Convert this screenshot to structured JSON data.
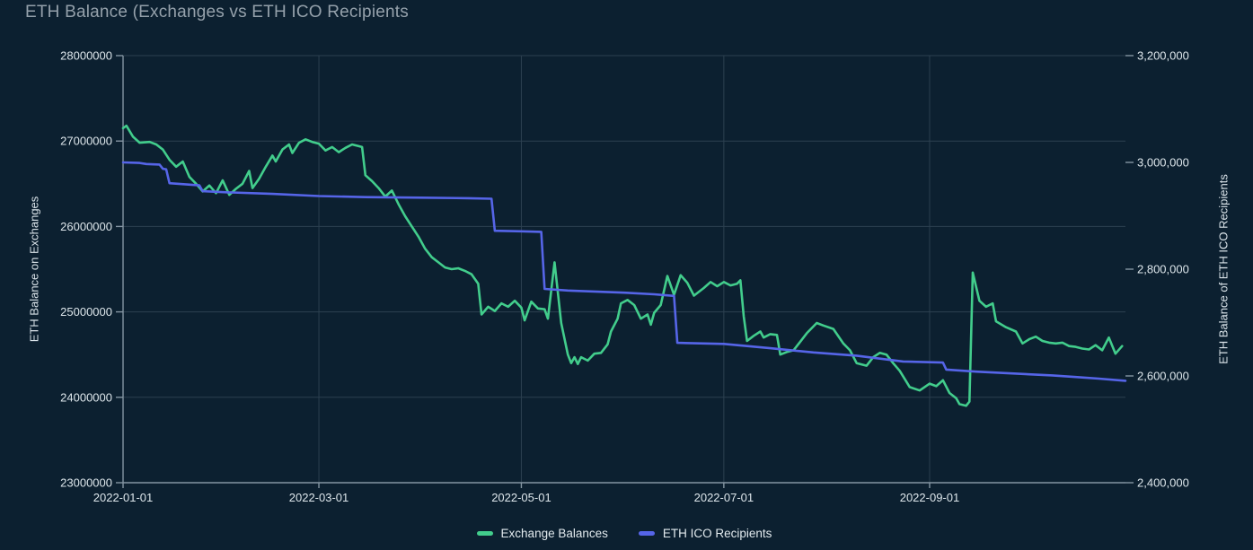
{
  "title": "ETH Balance (Exchanges vs ETH ICO Recipients",
  "colors": {
    "background": "#0c2030",
    "grid": "#2c4050",
    "axis": "#8495a2",
    "title_text": "#95a1ab",
    "tick_text": "#dde6eb",
    "exchange_balances": "#42cd8c",
    "eth_ico_recipients": "#5665e8"
  },
  "chart_data": {
    "type": "line",
    "title": "ETH Balance (Exchanges vs ETH ICO Recipients",
    "grid": true,
    "legend_position": "bottom",
    "x_axis": {
      "start": "2022-01-01",
      "end": "2022-10-30",
      "tick_dates": [
        "2022-01-01",
        "2022-03-01",
        "2022-05-01",
        "2022-07-01",
        "2022-09-01"
      ],
      "tick_labels": [
        "2022-01-01",
        "2022-03-01",
        "2022-05-01",
        "2022-07-01",
        "2022-09-01"
      ]
    },
    "left_axis": {
      "label": "ETH Balance on Exchanges",
      "min": 23000000,
      "max": 28000000,
      "tick_values": [
        28000000,
        27000000,
        26000000,
        25000000,
        24000000,
        23000000
      ],
      "tick_labels": [
        "28000000",
        "27000000",
        "26000000",
        "25000000",
        "24000000",
        "23000000"
      ]
    },
    "right_axis": {
      "label": "ETH Balance of ETH ICO Recipients",
      "min": 2400000,
      "max": 3200000,
      "tick_values": [
        3200000,
        3000000,
        2800000,
        2600000,
        2400000
      ],
      "tick_labels": [
        "3,200,000",
        "3,000,000",
        "2,800,000",
        "2,600,000",
        "2,400,000"
      ]
    },
    "series": [
      {
        "name": "Exchange Balances",
        "axis": "left",
        "color": "#42cd8c",
        "points": [
          [
            "2022-01-01",
            27150000
          ],
          [
            "2022-01-02",
            27180000
          ],
          [
            "2022-01-04",
            27050000
          ],
          [
            "2022-01-06",
            26980000
          ],
          [
            "2022-01-09",
            26990000
          ],
          [
            "2022-01-11",
            26960000
          ],
          [
            "2022-01-13",
            26900000
          ],
          [
            "2022-01-15",
            26780000
          ],
          [
            "2022-01-17",
            26700000
          ],
          [
            "2022-01-19",
            26760000
          ],
          [
            "2022-01-21",
            26580000
          ],
          [
            "2022-01-23",
            26500000
          ],
          [
            "2022-01-25",
            26410000
          ],
          [
            "2022-01-27",
            26480000
          ],
          [
            "2022-01-29",
            26390000
          ],
          [
            "2022-01-31",
            26540000
          ],
          [
            "2022-02-02",
            26370000
          ],
          [
            "2022-02-04",
            26440000
          ],
          [
            "2022-02-06",
            26500000
          ],
          [
            "2022-02-08",
            26650000
          ],
          [
            "2022-02-09",
            26450000
          ],
          [
            "2022-02-11",
            26560000
          ],
          [
            "2022-02-13",
            26700000
          ],
          [
            "2022-02-15",
            26830000
          ],
          [
            "2022-02-16",
            26760000
          ],
          [
            "2022-02-18",
            26900000
          ],
          [
            "2022-02-20",
            26960000
          ],
          [
            "2022-02-21",
            26860000
          ],
          [
            "2022-02-23",
            26980000
          ],
          [
            "2022-02-25",
            27020000
          ],
          [
            "2022-02-27",
            26990000
          ],
          [
            "2022-03-01",
            26970000
          ],
          [
            "2022-03-03",
            26890000
          ],
          [
            "2022-03-05",
            26930000
          ],
          [
            "2022-03-07",
            26870000
          ],
          [
            "2022-03-09",
            26920000
          ],
          [
            "2022-03-11",
            26960000
          ],
          [
            "2022-03-13",
            26940000
          ],
          [
            "2022-03-14",
            26930000
          ],
          [
            "2022-03-15",
            26600000
          ],
          [
            "2022-03-17",
            26530000
          ],
          [
            "2022-03-19",
            26450000
          ],
          [
            "2022-03-21",
            26350000
          ],
          [
            "2022-03-23",
            26420000
          ],
          [
            "2022-03-25",
            26260000
          ],
          [
            "2022-03-27",
            26120000
          ],
          [
            "2022-03-29",
            26000000
          ],
          [
            "2022-03-31",
            25880000
          ],
          [
            "2022-04-02",
            25740000
          ],
          [
            "2022-04-04",
            25640000
          ],
          [
            "2022-04-06",
            25580000
          ],
          [
            "2022-04-08",
            25520000
          ],
          [
            "2022-04-10",
            25500000
          ],
          [
            "2022-04-12",
            25510000
          ],
          [
            "2022-04-14",
            25480000
          ],
          [
            "2022-04-16",
            25440000
          ],
          [
            "2022-04-18",
            25330000
          ],
          [
            "2022-04-19",
            24970000
          ],
          [
            "2022-04-21",
            25060000
          ],
          [
            "2022-04-23",
            25010000
          ],
          [
            "2022-04-25",
            25100000
          ],
          [
            "2022-04-27",
            25060000
          ],
          [
            "2022-04-29",
            25130000
          ],
          [
            "2022-05-01",
            25050000
          ],
          [
            "2022-05-02",
            24900000
          ],
          [
            "2022-05-04",
            25120000
          ],
          [
            "2022-05-06",
            25040000
          ],
          [
            "2022-05-08",
            25030000
          ],
          [
            "2022-05-09",
            24920000
          ],
          [
            "2022-05-11",
            25580000
          ],
          [
            "2022-05-13",
            24870000
          ],
          [
            "2022-05-15",
            24500000
          ],
          [
            "2022-05-16",
            24400000
          ],
          [
            "2022-05-17",
            24470000
          ],
          [
            "2022-05-18",
            24390000
          ],
          [
            "2022-05-19",
            24470000
          ],
          [
            "2022-05-21",
            24430000
          ],
          [
            "2022-05-23",
            24510000
          ],
          [
            "2022-05-25",
            24520000
          ],
          [
            "2022-05-27",
            24620000
          ],
          [
            "2022-05-28",
            24770000
          ],
          [
            "2022-05-30",
            24920000
          ],
          [
            "2022-05-31",
            25100000
          ],
          [
            "2022-06-02",
            25140000
          ],
          [
            "2022-06-04",
            25080000
          ],
          [
            "2022-06-06",
            24920000
          ],
          [
            "2022-06-08",
            24970000
          ],
          [
            "2022-06-09",
            24850000
          ],
          [
            "2022-06-10",
            24990000
          ],
          [
            "2022-06-12",
            25080000
          ],
          [
            "2022-06-14",
            25420000
          ],
          [
            "2022-06-16",
            25200000
          ],
          [
            "2022-06-18",
            25430000
          ],
          [
            "2022-06-20",
            25340000
          ],
          [
            "2022-06-22",
            25190000
          ],
          [
            "2022-06-25",
            25280000
          ],
          [
            "2022-06-27",
            25350000
          ],
          [
            "2022-06-29",
            25300000
          ],
          [
            "2022-07-01",
            25350000
          ],
          [
            "2022-07-03",
            25310000
          ],
          [
            "2022-07-05",
            25330000
          ],
          [
            "2022-07-06",
            25370000
          ],
          [
            "2022-07-07",
            24950000
          ],
          [
            "2022-07-08",
            24660000
          ],
          [
            "2022-07-10",
            24720000
          ],
          [
            "2022-07-12",
            24770000
          ],
          [
            "2022-07-13",
            24700000
          ],
          [
            "2022-07-15",
            24740000
          ],
          [
            "2022-07-17",
            24730000
          ],
          [
            "2022-07-18",
            24500000
          ],
          [
            "2022-07-20",
            24530000
          ],
          [
            "2022-07-22",
            24550000
          ],
          [
            "2022-07-24",
            24650000
          ],
          [
            "2022-07-26",
            24750000
          ],
          [
            "2022-07-29",
            24870000
          ],
          [
            "2022-07-31",
            24840000
          ],
          [
            "2022-08-03",
            24800000
          ],
          [
            "2022-08-06",
            24630000
          ],
          [
            "2022-08-08",
            24550000
          ],
          [
            "2022-08-10",
            24400000
          ],
          [
            "2022-08-13",
            24370000
          ],
          [
            "2022-08-15",
            24470000
          ],
          [
            "2022-08-17",
            24520000
          ],
          [
            "2022-08-19",
            24500000
          ],
          [
            "2022-08-21",
            24400000
          ],
          [
            "2022-08-23",
            24310000
          ],
          [
            "2022-08-26",
            24120000
          ],
          [
            "2022-08-29",
            24080000
          ],
          [
            "2022-09-01",
            24160000
          ],
          [
            "2022-09-03",
            24130000
          ],
          [
            "2022-09-05",
            24200000
          ],
          [
            "2022-09-07",
            24050000
          ],
          [
            "2022-09-09",
            23990000
          ],
          [
            "2022-09-10",
            23920000
          ],
          [
            "2022-09-12",
            23900000
          ],
          [
            "2022-09-13",
            23950000
          ],
          [
            "2022-09-14",
            25460000
          ],
          [
            "2022-09-16",
            25130000
          ],
          [
            "2022-09-18",
            25060000
          ],
          [
            "2022-09-20",
            25100000
          ],
          [
            "2022-09-21",
            24890000
          ],
          [
            "2022-09-24",
            24820000
          ],
          [
            "2022-09-27",
            24770000
          ],
          [
            "2022-09-29",
            24630000
          ],
          [
            "2022-10-01",
            24680000
          ],
          [
            "2022-10-03",
            24710000
          ],
          [
            "2022-10-05",
            24660000
          ],
          [
            "2022-10-07",
            24640000
          ],
          [
            "2022-10-09",
            24630000
          ],
          [
            "2022-10-11",
            24640000
          ],
          [
            "2022-10-13",
            24600000
          ],
          [
            "2022-10-15",
            24590000
          ],
          [
            "2022-10-17",
            24570000
          ],
          [
            "2022-10-19",
            24560000
          ],
          [
            "2022-10-21",
            24610000
          ],
          [
            "2022-10-23",
            24550000
          ],
          [
            "2022-10-25",
            24700000
          ],
          [
            "2022-10-27",
            24510000
          ],
          [
            "2022-10-29",
            24600000
          ]
        ]
      },
      {
        "name": "ETH ICO Recipients",
        "axis": "right",
        "color": "#5665e8",
        "points": [
          [
            "2022-01-01",
            3000000
          ],
          [
            "2022-01-06",
            2999000
          ],
          [
            "2022-01-08",
            2997000
          ],
          [
            "2022-01-12",
            2996000
          ],
          [
            "2022-01-13",
            2988000
          ],
          [
            "2022-01-14",
            2987000
          ],
          [
            "2022-01-15",
            2961000
          ],
          [
            "2022-01-24",
            2957000
          ],
          [
            "2022-01-25",
            2946000
          ],
          [
            "2022-02-01",
            2944000
          ],
          [
            "2022-02-15",
            2941000
          ],
          [
            "2022-03-01",
            2937000
          ],
          [
            "2022-03-15",
            2935000
          ],
          [
            "2022-04-01",
            2934000
          ],
          [
            "2022-04-15",
            2933000
          ],
          [
            "2022-04-22",
            2932000
          ],
          [
            "2022-04-23",
            2872000
          ],
          [
            "2022-05-01",
            2871000
          ],
          [
            "2022-05-07",
            2870000
          ],
          [
            "2022-05-08",
            2763000
          ],
          [
            "2022-05-15",
            2760000
          ],
          [
            "2022-06-01",
            2756000
          ],
          [
            "2022-06-10",
            2753000
          ],
          [
            "2022-06-16",
            2750000
          ],
          [
            "2022-06-17",
            2662000
          ],
          [
            "2022-07-01",
            2660000
          ],
          [
            "2022-07-15",
            2652000
          ],
          [
            "2022-07-28",
            2644000
          ],
          [
            "2022-08-10",
            2638000
          ],
          [
            "2022-08-24",
            2627000
          ],
          [
            "2022-09-05",
            2625000
          ],
          [
            "2022-09-06",
            2612000
          ],
          [
            "2022-09-15",
            2608000
          ],
          [
            "2022-10-01",
            2603000
          ],
          [
            "2022-10-08",
            2601000
          ],
          [
            "2022-10-15",
            2598000
          ],
          [
            "2022-10-22",
            2595000
          ],
          [
            "2022-10-30",
            2591000
          ]
        ]
      }
    ]
  },
  "legend": {
    "items": [
      {
        "label": "Exchange Balances"
      },
      {
        "label": "ETH ICO Recipients"
      }
    ]
  }
}
